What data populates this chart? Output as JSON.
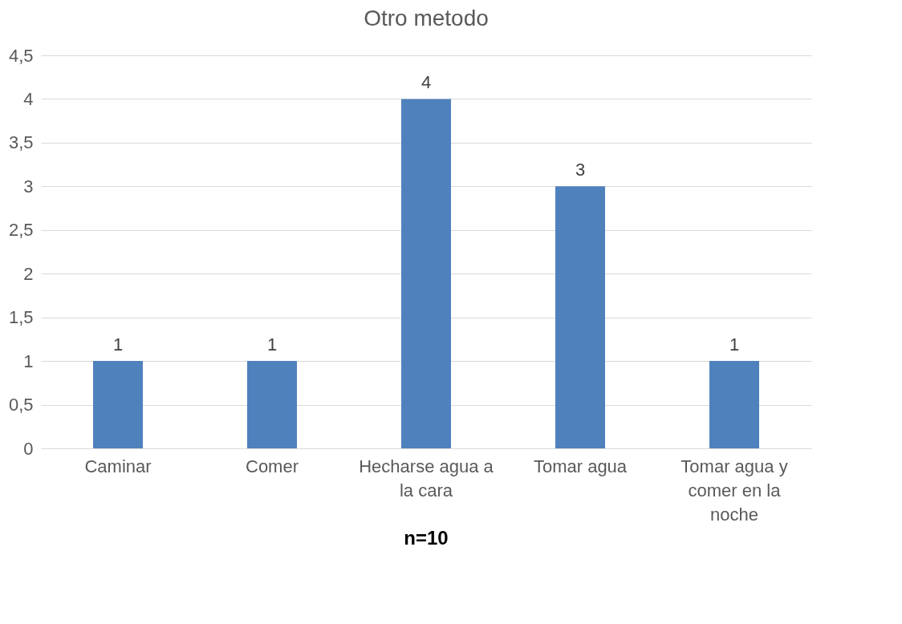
{
  "chart_data": {
    "type": "bar",
    "title": "Otro metodo",
    "categories": [
      "Caminar",
      "Comer",
      "Hecharse agua a la cara",
      "Tomar agua",
      "Tomar agua y comer en la noche"
    ],
    "values": [
      1,
      1,
      4,
      3,
      1
    ],
    "color": "#4f81bd",
    "ylim": [
      0,
      4.5
    ],
    "yticks": [
      {
        "value": 0,
        "label": "0"
      },
      {
        "value": 0.5,
        "label": "0,5"
      },
      {
        "value": 1,
        "label": "1"
      },
      {
        "value": 1.5,
        "label": "1,5"
      },
      {
        "value": 2,
        "label": "2"
      },
      {
        "value": 2.5,
        "label": "2,5"
      },
      {
        "value": 3,
        "label": "3"
      },
      {
        "value": 3.5,
        "label": "3,5"
      },
      {
        "value": 4,
        "label": "4"
      },
      {
        "value": 4.5,
        "label": "4,5"
      }
    ],
    "grid": "y",
    "data_labels": true,
    "annotations": [
      "n=10"
    ]
  }
}
